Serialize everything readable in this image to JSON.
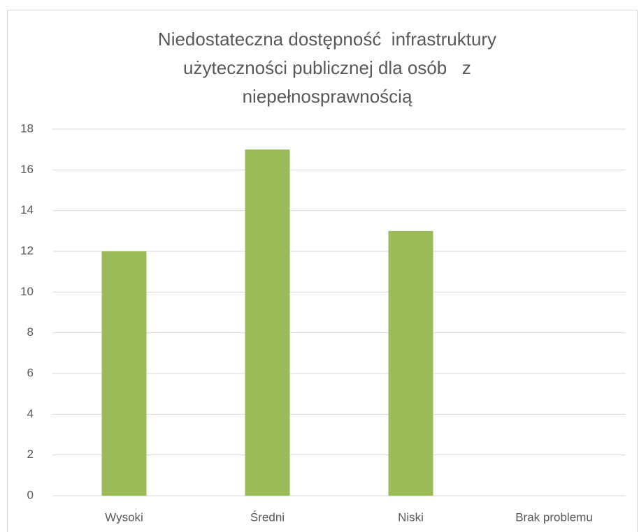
{
  "chart_data": {
    "type": "bar",
    "title": "Niedostateczna dostępność  infrastruktury użyteczności publicznej dla osób   z niepełnosprawnością",
    "categories": [
      "Wysoki",
      "Średni",
      "Niski",
      "Brak problemu"
    ],
    "values": [
      12,
      17,
      13,
      0
    ],
    "color": "#9bbb59",
    "ylim": [
      0,
      18
    ],
    "yticks": [
      0,
      2,
      4,
      6,
      8,
      10,
      12,
      14,
      16,
      18
    ],
    "grid": true
  }
}
